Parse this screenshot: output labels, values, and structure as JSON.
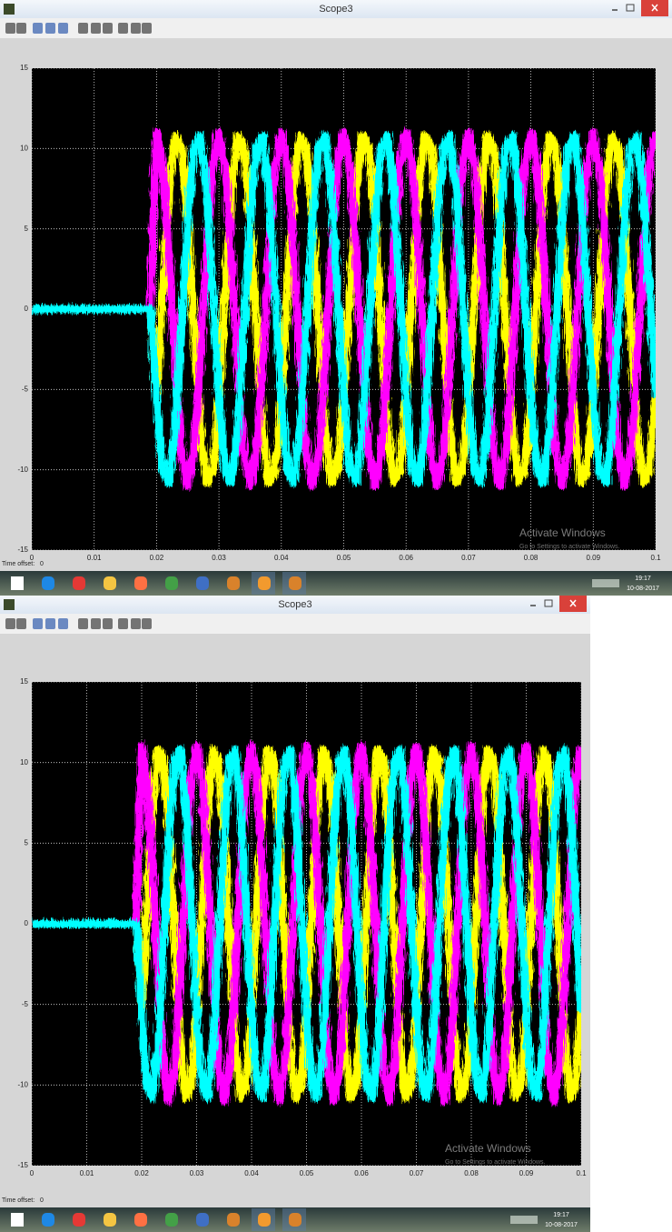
{
  "windows": [
    {
      "title": "Scope3",
      "time_offset_label": "Time offset:",
      "time_offset": 0,
      "watermark": {
        "title": "Activate Windows",
        "subtitle": "Go to Settings to activate Windows."
      },
      "taskbar": {
        "time": "19:17",
        "date": "10-08-2017"
      }
    },
    {
      "title": "Scope3",
      "time_offset_label": "Time offset:",
      "time_offset": 0,
      "watermark": {
        "title": "Activate Windows",
        "subtitle": "Go to Settings to activate Windows."
      },
      "taskbar": {
        "time": "19:17",
        "date": "10-08-2017"
      }
    }
  ],
  "chart_data": [
    {
      "type": "line",
      "background": "#000000",
      "grid": true,
      "xlim": [
        0,
        0.1
      ],
      "xticks": [
        0,
        0.01,
        0.02,
        0.03,
        0.04,
        0.05,
        0.06,
        0.07,
        0.08,
        0.09,
        0.1
      ],
      "ylim": [
        -15,
        15
      ],
      "yticks": [
        -15,
        -10,
        -5,
        0,
        5,
        10,
        15
      ],
      "x": [
        0,
        0.001,
        0.002,
        0.003,
        0.004,
        0.005,
        0.006,
        0.007,
        0.008,
        0.009,
        0.01,
        0.011,
        0.012,
        0.013,
        0.014,
        0.015,
        0.016,
        0.017,
        0.018,
        0.019,
        0.02,
        0.021,
        0.022,
        0.023,
        0.024,
        0.025,
        0.026,
        0.027,
        0.028,
        0.029,
        0.03,
        0.031,
        0.032,
        0.033,
        0.034,
        0.035,
        0.036,
        0.037,
        0.038,
        0.039,
        0.04,
        0.041,
        0.042,
        0.043,
        0.044,
        0.045,
        0.046,
        0.047,
        0.048,
        0.049,
        0.05,
        0.051,
        0.052,
        0.053,
        0.054,
        0.055,
        0.056,
        0.057,
        0.058,
        0.059,
        0.06,
        0.061,
        0.062,
        0.063,
        0.064,
        0.065,
        0.066,
        0.067,
        0.068,
        0.069,
        0.07,
        0.071,
        0.072,
        0.073,
        0.074,
        0.075,
        0.076,
        0.077,
        0.078,
        0.079,
        0.08,
        0.081,
        0.082,
        0.083,
        0.084,
        0.085,
        0.086,
        0.087,
        0.088,
        0.089,
        0.09,
        0.091,
        0.092,
        0.093,
        0.094,
        0.095,
        0.096,
        0.097,
        0.098,
        0.099,
        0.1
      ],
      "series": [
        {
          "color": "#ffff00",
          "values": [
            0,
            0,
            0,
            0,
            0,
            0,
            0,
            0,
            0,
            0,
            0,
            0,
            0,
            0,
            0,
            0,
            0,
            0,
            0,
            0,
            -5.5,
            1.1,
            7.4,
            10.8,
            10.1,
            5.5,
            -1.1,
            -7.4,
            -10.8,
            -10.1,
            -5.5,
            1.1,
            7.4,
            10.8,
            10.1,
            5.5,
            -1.1,
            -7.4,
            -10.8,
            -10.1,
            -5.5,
            1.1,
            7.4,
            10.8,
            10.1,
            5.5,
            -1.1,
            -7.4,
            -10.8,
            -10.1,
            -5.5,
            1.1,
            7.4,
            10.8,
            10.1,
            5.5,
            -1.1,
            -7.4,
            -10.8,
            -10.1,
            -5.5,
            1.1,
            7.4,
            10.8,
            10.1,
            5.5,
            -1.1,
            -7.4,
            -10.8,
            -10.1,
            -5.5,
            1.1,
            7.4,
            10.8,
            10.1,
            5.5,
            -1.1,
            -7.4,
            -10.8,
            -10.1,
            -5.5,
            1.1,
            7.4,
            10.8,
            10.1,
            5.5,
            -1.1,
            -7.4,
            -10.8,
            -10.1,
            -5.5,
            1.1,
            7.4,
            10.8,
            10.1,
            5.5,
            -1.1,
            -7.4,
            -10.8,
            -10.1,
            -5.5
          ]
        },
        {
          "color": "#ff00ff",
          "values": [
            0,
            0,
            0,
            0,
            0,
            0,
            0,
            0,
            0,
            0,
            0,
            0,
            0,
            0,
            0,
            0,
            0,
            0,
            0,
            0,
            11,
            8.9,
            3.4,
            -3.4,
            -8.9,
            -11,
            -8.9,
            -3.4,
            3.4,
            8.9,
            11,
            8.9,
            3.4,
            -3.4,
            -8.9,
            -11,
            -8.9,
            -3.4,
            3.4,
            8.9,
            11,
            8.9,
            3.4,
            -3.4,
            -8.9,
            -11,
            -8.9,
            -3.4,
            3.4,
            8.9,
            11,
            8.9,
            3.4,
            -3.4,
            -8.9,
            -11,
            -8.9,
            -3.4,
            3.4,
            8.9,
            11,
            8.9,
            3.4,
            -3.4,
            -8.9,
            -11,
            -8.9,
            -3.4,
            3.4,
            8.9,
            11,
            8.9,
            3.4,
            -3.4,
            -8.9,
            -11,
            -8.9,
            -3.4,
            3.4,
            8.9,
            11,
            8.9,
            3.4,
            -3.4,
            -8.9,
            -11,
            -8.9,
            -3.4,
            3.4,
            8.9,
            11,
            8.9,
            3.4,
            -3.4,
            -8.9,
            -11,
            -8.9,
            -3.4,
            3.4,
            8.9,
            11
          ]
        },
        {
          "color": "#00ffff",
          "values": [
            0,
            0,
            0,
            0,
            0,
            0,
            0,
            0,
            0,
            0,
            0,
            0,
            0,
            0,
            0,
            0,
            0,
            0,
            0,
            0,
            -5.5,
            -10.1,
            -10.8,
            -7.4,
            -1.1,
            5.5,
            10.1,
            10.8,
            7.4,
            1.1,
            -5.5,
            -10.1,
            -10.8,
            -7.4,
            -1.1,
            5.5,
            10.1,
            10.8,
            7.4,
            1.1,
            -5.5,
            -10.1,
            -10.8,
            -7.4,
            -1.1,
            5.5,
            10.1,
            10.8,
            7.4,
            1.1,
            -5.5,
            -10.1,
            -10.8,
            -7.4,
            -1.1,
            5.5,
            10.1,
            10.8,
            7.4,
            1.1,
            -5.5,
            -10.1,
            -10.8,
            -7.4,
            -1.1,
            5.5,
            10.1,
            10.8,
            7.4,
            1.1,
            -5.5,
            -10.1,
            -10.8,
            -7.4,
            -1.1,
            5.5,
            10.1,
            10.8,
            7.4,
            1.1,
            -5.5,
            -10.1,
            -10.8,
            -7.4,
            -1.1,
            5.5,
            10.1,
            10.8,
            7.4,
            1.1,
            -5.5,
            -10.1,
            -10.8,
            -7.4,
            -1.1,
            5.5,
            10.1,
            10.8,
            7.4,
            1.1,
            -5.5
          ]
        }
      ]
    },
    {
      "type": "line",
      "background": "#000000",
      "grid": true,
      "xlim": [
        0,
        0.1
      ],
      "xticks": [
        0,
        0.01,
        0.02,
        0.03,
        0.04,
        0.05,
        0.06,
        0.07,
        0.08,
        0.09,
        0.1
      ],
      "ylim": [
        -15,
        15
      ],
      "yticks": [
        -15,
        -10,
        -5,
        0,
        5,
        10,
        15
      ],
      "x": [
        0,
        0.001,
        0.002,
        0.003,
        0.004,
        0.005,
        0.006,
        0.007,
        0.008,
        0.009,
        0.01,
        0.011,
        0.012,
        0.013,
        0.014,
        0.015,
        0.016,
        0.017,
        0.018,
        0.019,
        0.02,
        0.021,
        0.022,
        0.023,
        0.024,
        0.025,
        0.026,
        0.027,
        0.028,
        0.029,
        0.03,
        0.031,
        0.032,
        0.033,
        0.034,
        0.035,
        0.036,
        0.037,
        0.038,
        0.039,
        0.04,
        0.041,
        0.042,
        0.043,
        0.044,
        0.045,
        0.046,
        0.047,
        0.048,
        0.049,
        0.05,
        0.051,
        0.052,
        0.053,
        0.054,
        0.055,
        0.056,
        0.057,
        0.058,
        0.059,
        0.06,
        0.061,
        0.062,
        0.063,
        0.064,
        0.065,
        0.066,
        0.067,
        0.068,
        0.069,
        0.07,
        0.071,
        0.072,
        0.073,
        0.074,
        0.075,
        0.076,
        0.077,
        0.078,
        0.079,
        0.08,
        0.081,
        0.082,
        0.083,
        0.084,
        0.085,
        0.086,
        0.087,
        0.088,
        0.089,
        0.09,
        0.091,
        0.092,
        0.093,
        0.094,
        0.095,
        0.096,
        0.097,
        0.098,
        0.099,
        0.1
      ],
      "series": [
        {
          "color": "#ffff00",
          "values": [
            0,
            0,
            0,
            0,
            0,
            0,
            0,
            0,
            0,
            0,
            0,
            0,
            0,
            0,
            0,
            0,
            0,
            0,
            0,
            0,
            -5.5,
            1.1,
            7.4,
            10.8,
            10.1,
            5.5,
            -1.1,
            -7.4,
            -10.8,
            -10.1,
            -5.5,
            1.1,
            7.4,
            10.8,
            10.1,
            5.5,
            -1.1,
            -7.4,
            -10.8,
            -10.1,
            -5.5,
            1.1,
            7.4,
            10.8,
            10.1,
            5.5,
            -1.1,
            -7.4,
            -10.8,
            -10.1,
            -5.5,
            1.1,
            7.4,
            10.8,
            10.1,
            5.5,
            -1.1,
            -7.4,
            -10.8,
            -10.1,
            -5.5,
            1.1,
            7.4,
            10.8,
            10.1,
            5.5,
            -1.1,
            -7.4,
            -10.8,
            -10.1,
            -5.5,
            1.1,
            7.4,
            10.8,
            10.1,
            5.5,
            -1.1,
            -7.4,
            -10.8,
            -10.1,
            -5.5,
            1.1,
            7.4,
            10.8,
            10.1,
            5.5,
            -1.1,
            -7.4,
            -10.8,
            -10.1,
            -5.5,
            1.1,
            7.4,
            10.8,
            10.1,
            5.5,
            -1.1,
            -7.4,
            -10.8,
            -10.1,
            -5.5
          ]
        },
        {
          "color": "#ff00ff",
          "values": [
            0,
            0,
            0,
            0,
            0,
            0,
            0,
            0,
            0,
            0,
            0,
            0,
            0,
            0,
            0,
            0,
            0,
            0,
            0,
            0,
            11,
            8.9,
            3.4,
            -3.4,
            -8.9,
            -11,
            -8.9,
            -3.4,
            3.4,
            8.9,
            11,
            8.9,
            3.4,
            -3.4,
            -8.9,
            -11,
            -8.9,
            -3.4,
            3.4,
            8.9,
            11,
            8.9,
            3.4,
            -3.4,
            -8.9,
            -11,
            -8.9,
            -3.4,
            3.4,
            8.9,
            11,
            8.9,
            3.4,
            -3.4,
            -8.9,
            -11,
            -8.9,
            -3.4,
            3.4,
            8.9,
            11,
            8.9,
            3.4,
            -3.4,
            -8.9,
            -11,
            -8.9,
            -3.4,
            3.4,
            8.9,
            11,
            8.9,
            3.4,
            -3.4,
            -8.9,
            -11,
            -8.9,
            -3.4,
            3.4,
            8.9,
            11,
            8.9,
            3.4,
            -3.4,
            -8.9,
            -11,
            -8.9,
            -3.4,
            3.4,
            8.9,
            11,
            8.9,
            3.4,
            -3.4,
            -8.9,
            -11,
            -8.9,
            -3.4,
            3.4,
            8.9,
            11
          ]
        },
        {
          "color": "#00ffff",
          "values": [
            0,
            0,
            0,
            0,
            0,
            0,
            0,
            0,
            0,
            0,
            0,
            0,
            0,
            0,
            0,
            0,
            0,
            0,
            0,
            0,
            -5.5,
            -10.1,
            -10.8,
            -7.4,
            -1.1,
            5.5,
            10.1,
            10.8,
            7.4,
            1.1,
            -5.5,
            -10.1,
            -10.8,
            -7.4,
            -1.1,
            5.5,
            10.1,
            10.8,
            7.4,
            1.1,
            -5.5,
            -10.1,
            -10.8,
            -7.4,
            -1.1,
            5.5,
            10.1,
            10.8,
            7.4,
            1.1,
            -5.5,
            -10.1,
            -10.8,
            -7.4,
            -1.1,
            5.5,
            10.1,
            10.8,
            7.4,
            1.1,
            -5.5,
            -10.1,
            -10.8,
            -7.4,
            -1.1,
            5.5,
            10.1,
            10.8,
            7.4,
            1.1,
            -5.5,
            -10.1,
            -10.8,
            -7.4,
            -1.1,
            5.5,
            10.1,
            10.8,
            7.4,
            1.1,
            -5.5,
            -10.1,
            -10.8,
            -7.4,
            -1.1,
            5.5,
            10.1,
            10.8,
            7.4,
            1.1,
            -5.5,
            -10.1,
            -10.8,
            -7.4,
            -1.1,
            5.5,
            10.1,
            10.8,
            7.4,
            1.1,
            -5.5
          ]
        }
      ]
    }
  ]
}
